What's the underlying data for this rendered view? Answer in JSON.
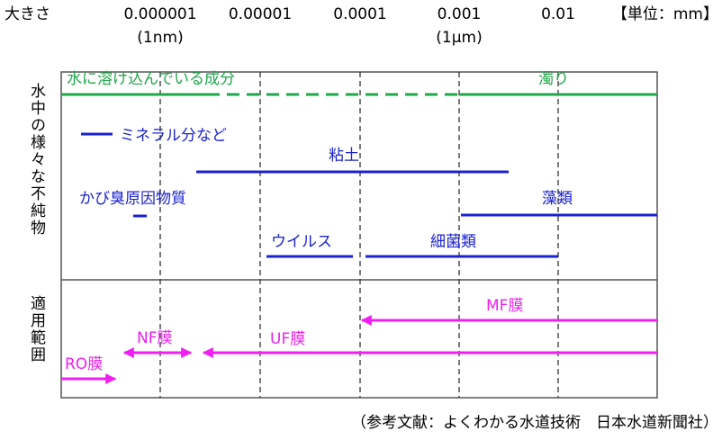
{
  "header": {
    "size_label": "大きさ",
    "ticks": [
      {
        "label": "0.000001",
        "sub": "(1nm)"
      },
      {
        "label": "0.00001"
      },
      {
        "label": "0.0001"
      },
      {
        "label": "0.001",
        "sub": "(1μm)"
      },
      {
        "label": "0.01"
      }
    ],
    "unit": "【単位：mm】"
  },
  "impurities": {
    "label": "水中の様々な不純物",
    "items": [
      "水に溶け込んでいる成分",
      "濁り",
      "ミネラル分など",
      "粘土",
      "かび臭原因物質",
      "藻類",
      "ウイルス",
      "細菌類"
    ]
  },
  "applicable_range": {
    "label": "適用範囲",
    "membranes": [
      "MF膜",
      "UF膜",
      "NF膜",
      "RO膜"
    ]
  },
  "source": "（参考文献：よくわかる水道技術　日本水道新聞社）"
}
